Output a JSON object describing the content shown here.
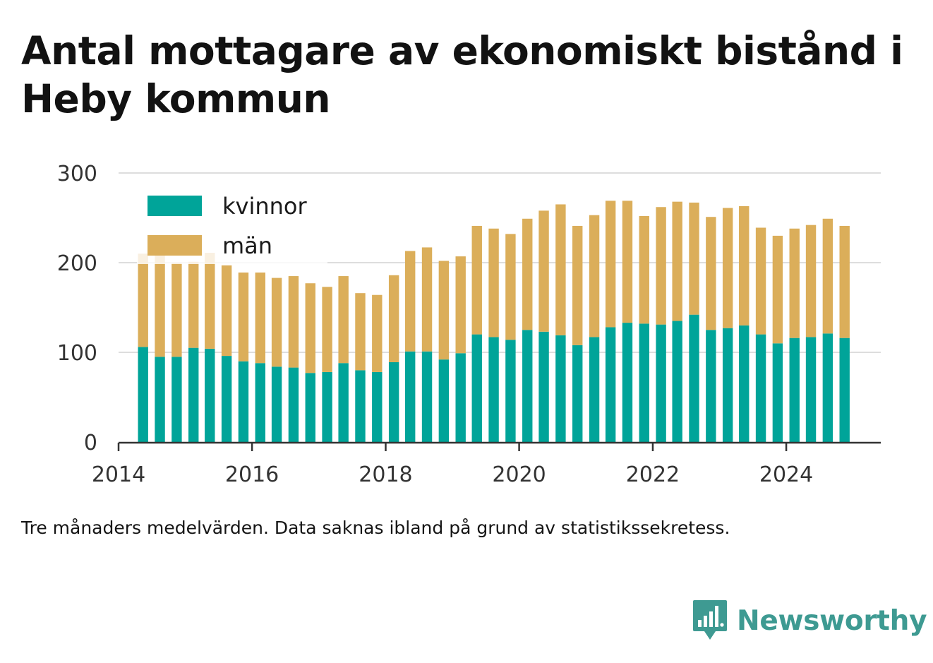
{
  "title": "Antal mottagare av ekonomiskt bistånd i Heby kommun",
  "caption": "Tre månaders medelvärden. Data saknas ibland på grund av statistikssekretess.",
  "brand": {
    "name": "Newsworthy",
    "color": "#3e9a92",
    "icon": "bar-chart-speech-bubble-icon"
  },
  "chart_data": {
    "type": "bar",
    "stacked": true,
    "ylim": [
      0,
      300
    ],
    "yticks": [
      0,
      100,
      200,
      300
    ],
    "xlim": [
      "2014-01-01",
      "2025-06-01"
    ],
    "xticks": [
      {
        "date": "2014-01-01",
        "label": "2014"
      },
      {
        "date": "2016-01-01",
        "label": "2016"
      },
      {
        "date": "2018-01-01",
        "label": "2018"
      },
      {
        "date": "2020-01-01",
        "label": "2020"
      },
      {
        "date": "2022-01-01",
        "label": "2022"
      },
      {
        "date": "2024-01-01",
        "label": "2024"
      }
    ],
    "grid": true,
    "legend": "top-left",
    "x": [
      "2014-05",
      "2014-08",
      "2014-11",
      "2015-02",
      "2015-05",
      "2015-08",
      "2015-11",
      "2016-02",
      "2016-05",
      "2016-08",
      "2016-11",
      "2017-02",
      "2017-05",
      "2017-08",
      "2017-11",
      "2018-02",
      "2018-05",
      "2018-08",
      "2018-11",
      "2019-02",
      "2019-05",
      "2019-08",
      "2019-11",
      "2020-02",
      "2020-05",
      "2020-08",
      "2020-11",
      "2021-02",
      "2021-05",
      "2021-08",
      "2021-11",
      "2022-02",
      "2022-05",
      "2022-08",
      "2022-11",
      "2023-02",
      "2023-05",
      "2023-08",
      "2023-11",
      "2024-02",
      "2024-05",
      "2024-08",
      "2024-11"
    ],
    "series": [
      {
        "name": "kvinnor",
        "color": "#00a499",
        "values": [
          106,
          95,
          95,
          105,
          104,
          96,
          90,
          88,
          84,
          83,
          77,
          78,
          88,
          80,
          78,
          89,
          101,
          101,
          92,
          99,
          120,
          117,
          114,
          125,
          123,
          119,
          108,
          117,
          128,
          133,
          132,
          131,
          135,
          142,
          125,
          127,
          130,
          120,
          110,
          116,
          117,
          121,
          116
        ]
      },
      {
        "name": "män",
        "color": "#dbae5a",
        "values": [
          104,
          118,
          105,
          96,
          107,
          101,
          99,
          101,
          99,
          102,
          100,
          95,
          97,
          86,
          86,
          97,
          112,
          116,
          110,
          108,
          121,
          121,
          118,
          124,
          135,
          146,
          133,
          136,
          141,
          136,
          120,
          131,
          133,
          125,
          126,
          134,
          133,
          119,
          120,
          122,
          125,
          128,
          125
        ]
      }
    ]
  }
}
